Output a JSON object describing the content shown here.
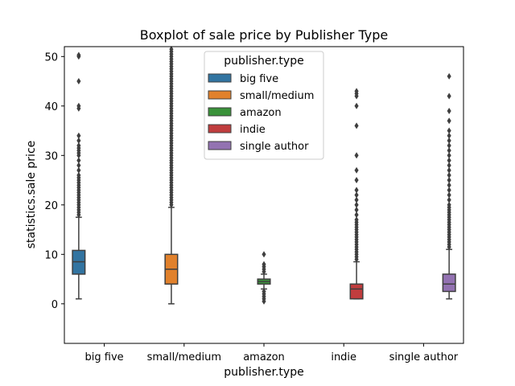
{
  "chart_data": {
    "type": "boxplot",
    "title": "Boxplot of sale price by Publisher Type",
    "xlabel": "publisher.type",
    "ylabel": "statistics.sale price",
    "ylim": [
      -8,
      52
    ],
    "yticks": [
      0,
      10,
      20,
      30,
      40,
      50
    ],
    "grid": false,
    "legend": {
      "title": "publisher.type",
      "placement": "top-center",
      "entries": [
        "big five",
        "small/medium",
        "amazon",
        "indie",
        "single author"
      ]
    },
    "categories": [
      "big five",
      "small/medium",
      "amazon",
      "indie",
      "single author"
    ],
    "colors": [
      "#3274a1",
      "#e1812c",
      "#3a923a",
      "#c03d3e",
      "#9372b2"
    ],
    "series": [
      {
        "name": "big five",
        "whisker_low": 1,
        "q1": 6,
        "median": 8.5,
        "q3": 10.8,
        "whisker_high": 17.5,
        "outliers": [
          18,
          18.5,
          19,
          19.5,
          20,
          20.5,
          21,
          21.5,
          22,
          22.5,
          23,
          23.5,
          24,
          24.5,
          25,
          25.5,
          26,
          27,
          28,
          29,
          30,
          30.5,
          31,
          31.5,
          32,
          33,
          34,
          39.5,
          40,
          45,
          50,
          50.3
        ]
      },
      {
        "name": "small/medium",
        "whisker_low": 0,
        "q1": 4,
        "median": 7,
        "q3": 10,
        "whisker_high": 19.5,
        "outliers": [
          20,
          20.5,
          21,
          21.5,
          22,
          22.5,
          23,
          23.5,
          24,
          24.5,
          25,
          25.5,
          26,
          26.5,
          27,
          27.5,
          28,
          28.5,
          29,
          29.5,
          30,
          30.5,
          31,
          31.5,
          32,
          32.5,
          33,
          33.5,
          34,
          34.5,
          35,
          35.5,
          36,
          36.5,
          37,
          37.5,
          38,
          38.5,
          39,
          39.5,
          40,
          40.5,
          41,
          41.5,
          42,
          42.5,
          43,
          43.5,
          44,
          44.5,
          45,
          45.5,
          46,
          46.5,
          47,
          47.5,
          48,
          48.5,
          49,
          49.5,
          50,
          50.5,
          51,
          51.5
        ]
      },
      {
        "name": "amazon",
        "whisker_low": 3,
        "q1": 4,
        "median": 4.5,
        "q3": 5,
        "whisker_high": 6,
        "outliers": [
          0.5,
          1,
          1.5,
          2,
          2.5,
          6.5,
          7,
          7.5,
          8,
          10
        ]
      },
      {
        "name": "indie",
        "whisker_low": 1,
        "q1": 1,
        "median": 3,
        "q3": 4,
        "whisker_high": 8.5,
        "outliers": [
          9,
          9.5,
          10,
          10.5,
          11,
          11.5,
          12,
          12.5,
          13,
          13.5,
          14,
          14.5,
          15,
          15.5,
          16,
          16.5,
          17,
          18,
          19,
          20,
          21,
          22,
          23,
          25,
          27,
          30,
          36,
          40,
          42,
          42.5,
          43
        ]
      },
      {
        "name": "single author",
        "whisker_low": 1,
        "q1": 2.5,
        "median": 4,
        "q3": 6,
        "whisker_high": 11,
        "outliers": [
          11.5,
          12,
          12.5,
          13,
          13.5,
          14,
          14.5,
          15,
          15.5,
          16,
          16.5,
          17,
          17.5,
          18,
          18.5,
          19,
          19.5,
          20,
          21,
          22,
          23,
          24,
          25,
          26,
          27,
          28,
          29,
          30,
          31,
          32,
          33,
          34,
          35,
          37,
          39,
          42,
          46
        ]
      }
    ]
  }
}
